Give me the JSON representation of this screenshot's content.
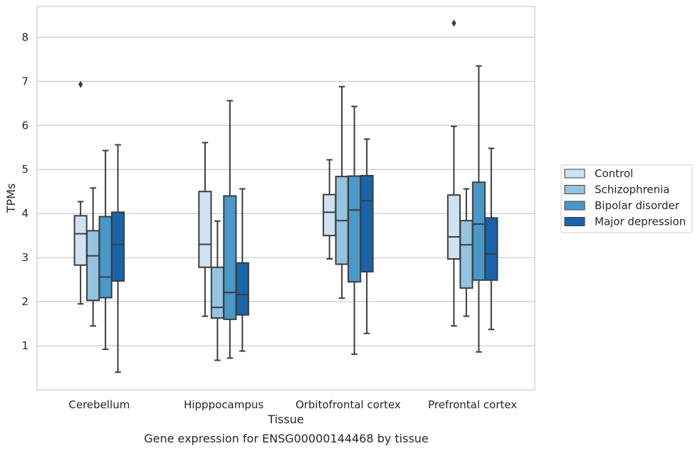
{
  "chart_data": {
    "type": "boxplot",
    "title": "",
    "caption": "Gene expression for ENSG00000144468 by tissue",
    "xlabel": "Tissue",
    "ylabel": "TPMs",
    "ylim": [
      0,
      8.7
    ],
    "yticks": [
      1,
      2,
      3,
      4,
      5,
      6,
      7,
      8
    ],
    "grid": "horizontal",
    "legend_position": "right",
    "categories": [
      "Cerebellum",
      "Hipppocampus",
      "Orbitofrontal cortex",
      "Prefrontal cortex"
    ],
    "series": [
      {
        "name": "Control",
        "color": "#d0e1f2",
        "boxes": [
          {
            "min": 1.95,
            "q1": 2.83,
            "median": 3.54,
            "q3": 3.95,
            "max": 4.27,
            "outliers": [
              6.93
            ]
          },
          {
            "min": 1.67,
            "q1": 2.78,
            "median": 3.3,
            "q3": 4.5,
            "max": 5.61,
            "outliers": []
          },
          {
            "min": 2.97,
            "q1": 3.5,
            "median": 4.03,
            "q3": 4.43,
            "max": 5.22,
            "outliers": []
          },
          {
            "min": 1.45,
            "q1": 2.97,
            "median": 3.47,
            "q3": 4.42,
            "max": 5.98,
            "outliers": [
              8.32
            ]
          }
        ]
      },
      {
        "name": "Schizophrenia",
        "color": "#94c4df",
        "boxes": [
          {
            "min": 1.45,
            "q1": 2.03,
            "median": 3.04,
            "q3": 3.61,
            "max": 4.58,
            "outliers": []
          },
          {
            "min": 0.67,
            "q1": 1.63,
            "median": 1.87,
            "q3": 2.78,
            "max": 3.83,
            "outliers": []
          },
          {
            "min": 2.08,
            "q1": 2.85,
            "median": 3.84,
            "q3": 4.84,
            "max": 6.88,
            "outliers": []
          },
          {
            "min": 1.67,
            "q1": 2.31,
            "median": 3.29,
            "q3": 3.84,
            "max": 4.56,
            "outliers": []
          }
        ]
      },
      {
        "name": "Bipolar disorder",
        "color": "#4a98c9",
        "boxes": [
          {
            "min": 0.92,
            "q1": 2.09,
            "median": 2.56,
            "q3": 3.93,
            "max": 5.43,
            "outliers": []
          },
          {
            "min": 0.72,
            "q1": 1.6,
            "median": 2.21,
            "q3": 4.4,
            "max": 6.56,
            "outliers": []
          },
          {
            "min": 0.81,
            "q1": 2.45,
            "median": 4.08,
            "q3": 4.85,
            "max": 6.43,
            "outliers": []
          },
          {
            "min": 0.86,
            "q1": 2.49,
            "median": 3.76,
            "q3": 4.71,
            "max": 7.35,
            "outliers": []
          }
        ]
      },
      {
        "name": "Major depression",
        "color": "#1764ab",
        "boxes": [
          {
            "min": 0.4,
            "q1": 2.47,
            "median": 3.3,
            "q3": 4.03,
            "max": 5.56,
            "outliers": []
          },
          {
            "min": 0.88,
            "q1": 1.7,
            "median": 2.16,
            "q3": 2.88,
            "max": 4.56,
            "outliers": []
          },
          {
            "min": 1.28,
            "q1": 2.68,
            "median": 4.29,
            "q3": 4.86,
            "max": 5.69,
            "outliers": []
          },
          {
            "min": 1.37,
            "q1": 2.49,
            "median": 3.08,
            "q3": 3.9,
            "max": 5.48,
            "outliers": []
          }
        ]
      }
    ]
  }
}
